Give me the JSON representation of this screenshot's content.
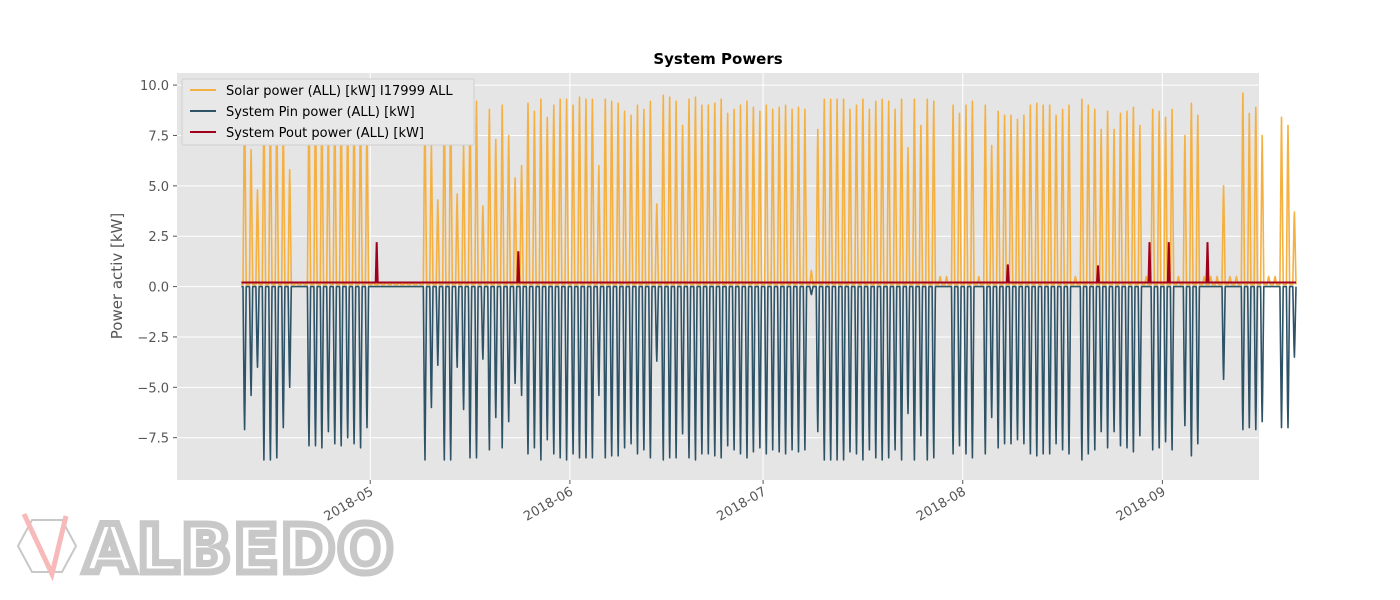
{
  "colors": {
    "solar": "#f5b042",
    "pin": "#2e5266",
    "pout": "#a0001b",
    "plot_bg": "#e5e5e5",
    "grid": "#ffffff"
  },
  "chart_data": {
    "type": "line",
    "title": "System Powers",
    "xlabel": "",
    "ylabel": "Power activ [kW]",
    "xlim": [
      "2018-04-01",
      "2018-09-16"
    ],
    "ylim": [
      -9.6,
      10.6
    ],
    "grid": true,
    "legend": "top-left",
    "x_ticks": [
      "2018-05",
      "2018-06",
      "2018-07",
      "2018-08",
      "2018-09"
    ],
    "y_ticks": [
      "10.0",
      "7.5",
      "5.0",
      "2.5",
      "0.0",
      "−2.5",
      "−5.0",
      "−7.5"
    ],
    "y_tick_values": [
      10.0,
      7.5,
      5.0,
      2.5,
      0.0,
      -2.5,
      -5.0,
      -7.5
    ],
    "series": [
      {
        "name": "Solar power (ALL) [kW] I17999 ALL",
        "color": "#f5b042",
        "description": "daily peaks",
        "data_start": "2018-04-11",
        "daily_peak": [
          9.2,
          6.8,
          4.8,
          9.0,
          8.6,
          8.8,
          8.0,
          5.8,
          0.2,
          0.2,
          9.1,
          9.3,
          9.2,
          8.4,
          9.0,
          9.0,
          8.7,
          9.0,
          9.3,
          8.0,
          0.2,
          0.2,
          0.2,
          0.2,
          0.2,
          0.2,
          0.2,
          0.2,
          9.0,
          7.0,
          4.3,
          9.3,
          9.3,
          4.6,
          7.0,
          9.2,
          9.2,
          4.0,
          8.8,
          7.3,
          9.0,
          7.5,
          5.4,
          6.0,
          9.1,
          8.7,
          9.3,
          8.4,
          9.0,
          9.3,
          9.3,
          9.0,
          9.4,
          9.3,
          9.3,
          6.0,
          9.3,
          9.2,
          9.1,
          8.7,
          8.5,
          9.0,
          8.8,
          9.2,
          4.1,
          9.5,
          9.4,
          9.2,
          8.0,
          9.3,
          9.4,
          9.0,
          9.0,
          9.1,
          9.3,
          8.6,
          8.8,
          9.0,
          9.2,
          8.9,
          8.7,
          9.0,
          8.8,
          8.9,
          9.0,
          8.8,
          8.9,
          8.8,
          0.8,
          7.8,
          9.3,
          9.3,
          9.3,
          9.3,
          8.8,
          9.0,
          9.3,
          8.8,
          9.2,
          9.3,
          9.2,
          8.8,
          9.3,
          6.9,
          9.3,
          8.0,
          9.3,
          9.2,
          0.5,
          0.5,
          9.0,
          8.6,
          9.0,
          9.2,
          0.5,
          9.0,
          7.0,
          8.7,
          8.5,
          8.5,
          8.3,
          8.5,
          9.0,
          9.1,
          9.0,
          9.0,
          8.5,
          8.8,
          9.0,
          0.5,
          9.3,
          9.0,
          8.8,
          7.8,
          8.7,
          7.8,
          8.6,
          8.7,
          8.9,
          8.0,
          0.5,
          8.8,
          8.7,
          8.4,
          8.8,
          0.5,
          7.5,
          9.1,
          8.5,
          0.5,
          0.5,
          0.5,
          5.0,
          0.5,
          0.5,
          9.6,
          8.6,
          8.9,
          7.5,
          0.5,
          0.5,
          8.4,
          8.0,
          3.7
        ]
      },
      {
        "name": "System Pin power (ALL) [kW]",
        "color": "#2e5266",
        "description": "daily troughs (negative)",
        "data_start": "2018-04-11",
        "daily_trough": [
          -7.1,
          -5.4,
          -4.0,
          -8.6,
          -8.6,
          -8.5,
          -7.0,
          -5.0,
          0.0,
          0.0,
          -7.9,
          -7.9,
          -8.0,
          -7.2,
          -7.8,
          -7.9,
          -7.5,
          -7.8,
          -8.0,
          -7.0,
          0.0,
          0.0,
          0.0,
          0.0,
          0.0,
          0.0,
          0.0,
          0.0,
          -8.6,
          -6.0,
          -3.9,
          -8.6,
          -8.6,
          -4.0,
          -6.1,
          -8.5,
          -8.5,
          -3.6,
          -8.1,
          -6.5,
          -8.0,
          -6.7,
          -4.8,
          -5.4,
          -8.3,
          -8.0,
          -8.6,
          -7.6,
          -8.3,
          -8.5,
          -8.6,
          -8.3,
          -8.5,
          -8.5,
          -8.5,
          -5.4,
          -8.5,
          -8.4,
          -8.4,
          -8.0,
          -7.8,
          -8.3,
          -8.1,
          -8.5,
          -3.7,
          -8.6,
          -8.5,
          -8.5,
          -7.3,
          -8.5,
          -8.6,
          -8.3,
          -8.3,
          -8.4,
          -8.5,
          -7.9,
          -8.1,
          -8.3,
          -8.5,
          -8.2,
          -8.0,
          -8.3,
          -8.1,
          -8.2,
          -8.3,
          -8.1,
          -8.2,
          -8.1,
          -0.4,
          -7.2,
          -8.6,
          -8.6,
          -8.6,
          -8.6,
          -8.2,
          -8.3,
          -8.6,
          -8.1,
          -8.5,
          -8.6,
          -8.5,
          -8.1,
          -8.6,
          -6.3,
          -8.6,
          -7.4,
          -8.6,
          -8.5,
          0.0,
          0.0,
          -8.3,
          -7.9,
          -8.3,
          -8.5,
          0.0,
          -8.3,
          -6.5,
          -8.0,
          -7.8,
          -7.8,
          -7.6,
          -7.8,
          -8.3,
          -8.4,
          -8.3,
          -8.3,
          -7.8,
          -8.1,
          -8.3,
          0.0,
          -8.6,
          -8.3,
          -8.1,
          -7.2,
          -8.0,
          -7.2,
          -7.9,
          -8.0,
          -8.2,
          -7.4,
          0.0,
          -8.1,
          -8.0,
          -7.7,
          -8.1,
          0.0,
          -6.9,
          -8.4,
          -7.8,
          0.0,
          0.0,
          0.0,
          -4.6,
          0.0,
          0.0,
          -7.1,
          -7.0,
          -7.1,
          -6.7,
          0.0,
          0.0,
          -7.0,
          -7.0,
          -3.5
        ]
      },
      {
        "name": "System Pout power (ALL) [kW]",
        "color": "#a0001b",
        "description": "near-constant baseline with spikes",
        "baseline": 0.2,
        "spikes": [
          {
            "x": "2018-05-02",
            "y": 2.2
          },
          {
            "x": "2018-05-24",
            "y": 1.75
          },
          {
            "x": "2018-08-08",
            "y": 1.1
          },
          {
            "x": "2018-08-22",
            "y": 1.05
          },
          {
            "x": "2018-08-30",
            "y": 2.2
          },
          {
            "x": "2018-09-02",
            "y": 2.2
          },
          {
            "x": "2018-09-08",
            "y": 2.2
          }
        ]
      }
    ]
  },
  "logo": {
    "text": "ALBEDO"
  }
}
